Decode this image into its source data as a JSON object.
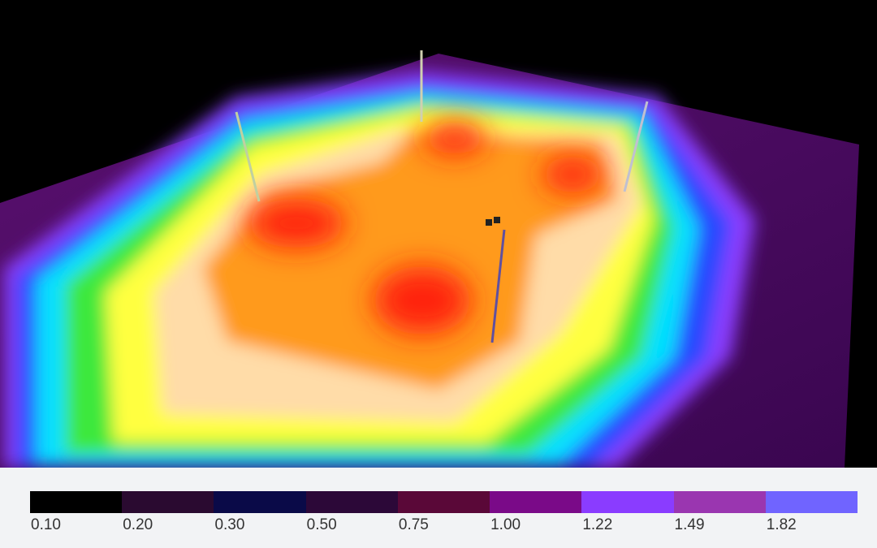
{
  "legend": {
    "items": [
      {
        "label": "0.10",
        "color": "#000000"
      },
      {
        "label": "0.20",
        "color": "#2a0a30"
      },
      {
        "label": "0.30",
        "color": "#0a0a48"
      },
      {
        "label": "0.50",
        "color": "#2c0838"
      },
      {
        "label": "0.75",
        "color": "#5a0838"
      },
      {
        "label": "1.00",
        "color": "#7a0a88"
      },
      {
        "label": "1.22",
        "color": "#8a3cff"
      },
      {
        "label": "1.49",
        "color": "#9a36b0"
      },
      {
        "label": "1.82",
        "color": "#7064ff"
      }
    ]
  }
}
